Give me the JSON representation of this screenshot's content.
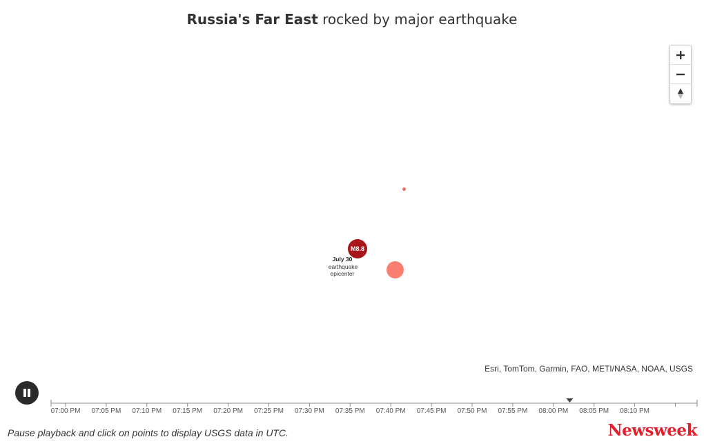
{
  "header": {
    "title_bold": "Russia's Far East",
    "title_rest": "rocked by major earthquake"
  },
  "map": {
    "zoom_in_icon": "plus-icon",
    "zoom_out_icon": "minus-icon",
    "reset_icon": "compass-reset-icon",
    "epicenter": {
      "magnitude_label": "M8.8",
      "date_label": "July 30",
      "line1": "earthquake",
      "line2": "epicenter"
    },
    "marker_color": "#fa7f71",
    "epicenter_color": "#a8151b",
    "attribution": "Esri, TomTom, Garmin, FAO, METI/NASA, NOAA, USGS"
  },
  "playback": {
    "state": "playing",
    "button_icon": "pause-icon",
    "timeline": {
      "ticks": [
        "07:00 PM",
        "07:05 PM",
        "07:10 PM",
        "07:15 PM",
        "07:20 PM",
        "07:25 PM",
        "07:30 PM",
        "07:35 PM",
        "07:40 PM",
        "07:45 PM",
        "07:50 PM",
        "07:55 PM",
        "08:00 PM",
        "08:05 PM",
        "08:10 PM"
      ],
      "current_time": "08:02 PM"
    }
  },
  "footer": {
    "note": "Pause playback and click on points to display USGS data in UTC.",
    "logo": "Newsweek",
    "logo_color": "#e2202d"
  }
}
